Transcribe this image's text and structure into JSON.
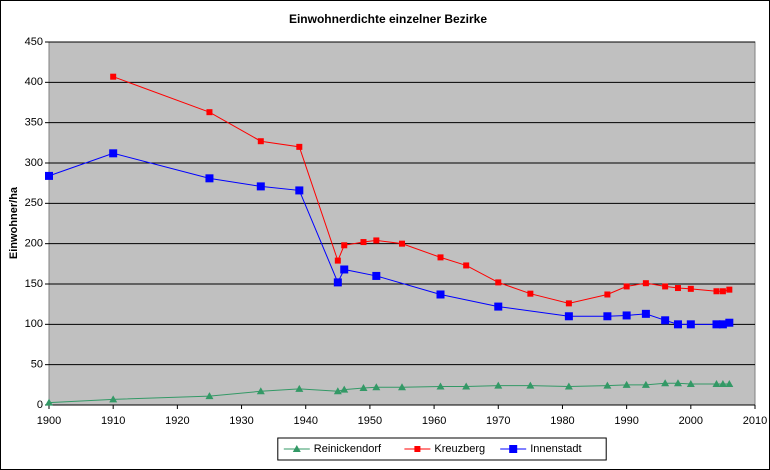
{
  "chart_data": {
    "type": "line",
    "title": "Einwohnerdichte einzelner Bezirke",
    "y_label": "Einwohner/ha",
    "xlim": [
      1900,
      2010
    ],
    "xticks": [
      1900,
      1910,
      1920,
      1930,
      1940,
      1950,
      1960,
      1970,
      1980,
      1990,
      2000,
      2010
    ],
    "ylim": [
      0,
      450
    ],
    "yticks": [
      0,
      50,
      100,
      150,
      200,
      250,
      300,
      350,
      400,
      450
    ],
    "grid": true,
    "legend": "bottom",
    "series": [
      {
        "name": "Reinickendorf",
        "color": "#339966",
        "marker": "triangle",
        "x": [
          1900,
          1910,
          1925,
          1933,
          1939,
          1945,
          1946,
          1949,
          1951,
          1955,
          1961,
          1965,
          1970,
          1975,
          1981,
          1987,
          1990,
          1993,
          1996,
          1998,
          2000,
          2004,
          2005,
          2006
        ],
        "values": [
          3,
          7,
          11,
          17,
          20,
          17,
          19,
          21,
          22,
          22,
          23,
          23,
          24,
          24,
          23,
          24,
          25,
          25,
          27,
          27,
          26,
          26,
          26,
          26
        ]
      },
      {
        "name": "Kreuzberg",
        "color": "#ff0000",
        "marker": "square-small",
        "x": [
          1910,
          1925,
          1933,
          1939,
          1945,
          1946,
          1949,
          1951,
          1955,
          1961,
          1965,
          1970,
          1975,
          1981,
          1987,
          1990,
          1993,
          1996,
          1998,
          2000,
          2004,
          2005,
          2006
        ],
        "values": [
          407,
          363,
          327,
          320,
          179,
          198,
          202,
          204,
          200,
          183,
          173,
          152,
          138,
          126,
          137,
          147,
          151,
          147,
          145,
          144,
          141,
          141,
          143
        ]
      },
      {
        "name": "Innenstadt",
        "color": "#0000ff",
        "marker": "square",
        "x": [
          1900,
          1910,
          1925,
          1933,
          1939,
          1945,
          1946,
          1951,
          1961,
          1970,
          1981,
          1987,
          1990,
          1993,
          1996,
          1998,
          2000,
          2004,
          2005,
          2006
        ],
        "values": [
          284,
          312,
          281,
          271,
          266,
          152,
          168,
          160,
          137,
          122,
          110,
          110,
          111,
          113,
          105,
          100,
          100,
          100,
          100,
          102
        ]
      }
    ]
  }
}
